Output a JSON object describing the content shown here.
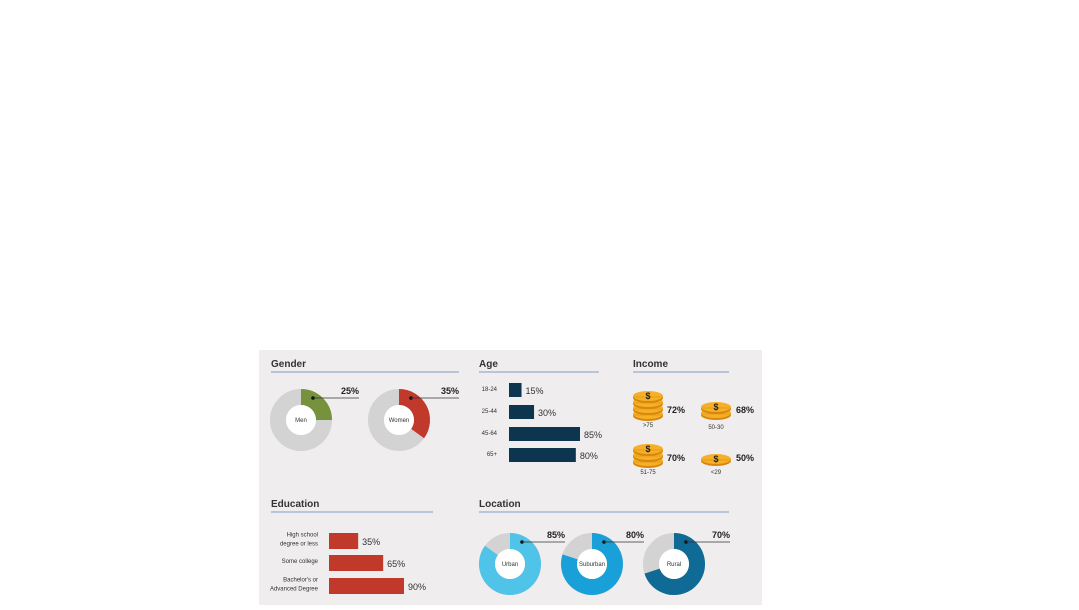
{
  "colors": {
    "panel_bg": "#efedee",
    "track": "#d3d3d3",
    "men": "#76923c",
    "women": "#c0392b",
    "age_bar": "#0e3550",
    "edu_bar": "#c0392b",
    "urban": "#4fc3e8",
    "suburban": "#1aa0d8",
    "rural": "#0f6a96",
    "rule": "#5b7fb3",
    "coin": "#f5b027",
    "coin_dark": "#d8870c"
  },
  "chart_data": [
    {
      "type": "pie",
      "title": "Gender",
      "slices": [
        {
          "label": "Men",
          "value": 25,
          "display": "25%"
        },
        {
          "label": "Women",
          "value": 35,
          "display": "35%"
        }
      ]
    },
    {
      "type": "bar",
      "title": "Age",
      "categories": [
        "18-24",
        "25-44",
        "45-64",
        "65+"
      ],
      "values": [
        15,
        30,
        85,
        80
      ],
      "displays": [
        "15%",
        "30%",
        "85%",
        "80%"
      ]
    },
    {
      "type": "bar",
      "title": "Income",
      "categories": [
        ">75",
        "50-30",
        "51-75",
        "<29"
      ],
      "values": [
        72,
        68,
        70,
        50
      ],
      "displays": [
        "72%",
        "68%",
        "70%",
        "50%"
      ],
      "icon": "coin-stack-icon"
    },
    {
      "type": "bar",
      "title": "Education",
      "categories": [
        [
          "High school",
          "degree or less"
        ],
        [
          "Some college"
        ],
        [
          "Bachelor's or",
          "Advanced Degree"
        ]
      ],
      "values": [
        35,
        65,
        90
      ],
      "displays": [
        "35%",
        "65%",
        "90%"
      ]
    },
    {
      "type": "pie",
      "title": "Location",
      "slices": [
        {
          "label": "Urban",
          "value": 85,
          "display": "85%"
        },
        {
          "label": "Suburban",
          "value": 80,
          "display": "80%"
        },
        {
          "label": "Rural",
          "value": 70,
          "display": "70%"
        }
      ]
    }
  ]
}
